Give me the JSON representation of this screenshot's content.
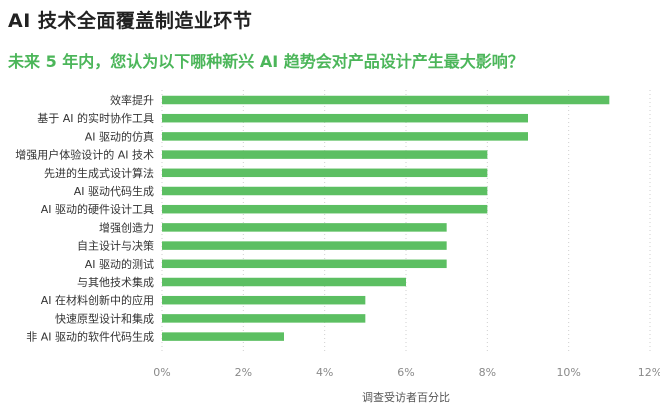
{
  "header": {
    "title": "AI 技术全面覆盖制造业环节",
    "subtitle": "未来 5 年内，您认为以下哪种新兴 AI 趋势会对产品设计产生最大影响？"
  },
  "colors": {
    "bar": "#5cbf62",
    "accent": "#4cb65a",
    "grid": "#cfcfcf"
  },
  "chart_data": {
    "type": "bar",
    "orientation": "horizontal",
    "categories": [
      "效率提升",
      "基于 AI 的实时协作工具",
      "AI 驱动的仿真",
      "增强用户体验设计的 AI 技术",
      "先进的生成式设计算法",
      "AI 驱动代码生成",
      "AI 驱动的硬件设计工具",
      "增强创造力",
      "自主设计与决策",
      "AI 驱动的测试",
      "与其他技术集成",
      "AI 在材料创新中的应用",
      "快速原型设计和集成",
      "非 AI 驱动的软件代码生成"
    ],
    "values": [
      11,
      9,
      9,
      8,
      8,
      8,
      8,
      7,
      7,
      7,
      6,
      5,
      5,
      3
    ],
    "xlabel": "调查受访者百分比",
    "ylabel": "",
    "xlim": [
      0,
      12
    ],
    "xticks": [
      "0%",
      "2%",
      "4%",
      "6%",
      "8%",
      "10%",
      "12%"
    ],
    "grid": true
  }
}
